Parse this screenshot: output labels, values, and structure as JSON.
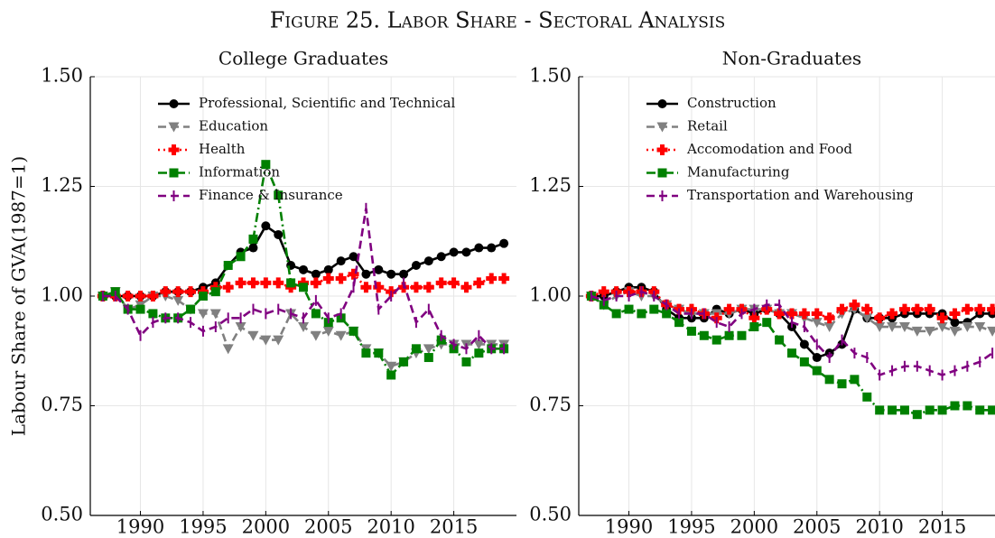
{
  "title": "Figure 25. Labor Share - Sectoral Analysis",
  "chart_data": [
    {
      "type": "line",
      "title": "College Graduates",
      "ylabel": "Labour Share of GVA(1987=1)",
      "x": [
        1987,
        1988,
        1989,
        1990,
        1991,
        1992,
        1993,
        1994,
        1995,
        1996,
        1997,
        1998,
        1999,
        2000,
        2001,
        2002,
        2003,
        2004,
        2005,
        2006,
        2007,
        2008,
        2009,
        2010,
        2011,
        2012,
        2013,
        2014,
        2015,
        2016,
        2017,
        2018,
        2019
      ],
      "xlim": [
        1986,
        2020
      ],
      "xticks": [
        1990,
        1995,
        2000,
        2005,
        2010,
        2015
      ],
      "ylim": [
        0.5,
        1.5
      ],
      "yticks": [
        {
          "value": 0.5,
          "label": "0.50"
        },
        {
          "value": 0.75,
          "label": "0.75"
        },
        {
          "value": 1.0,
          "label": "1.00"
        },
        {
          "value": 1.25,
          "label": "1.25"
        },
        {
          "value": 1.5,
          "label": "1.50"
        }
      ],
      "grid": true,
      "legend": "upper right",
      "series": [
        {
          "name": "Professional, Scientific and Technical",
          "color": "#000000",
          "marker": "circle",
          "linestyle": "solid",
          "values": [
            1.0,
            1.0,
            1.0,
            1.0,
            1.0,
            1.01,
            1.01,
            1.01,
            1.02,
            1.03,
            1.07,
            1.1,
            1.11,
            1.16,
            1.14,
            1.07,
            1.06,
            1.05,
            1.06,
            1.08,
            1.09,
            1.05,
            1.06,
            1.05,
            1.05,
            1.07,
            1.08,
            1.09,
            1.1,
            1.1,
            1.11,
            1.11,
            1.12
          ]
        },
        {
          "name": "Education",
          "color": "#808080",
          "marker": "triangle-down",
          "linestyle": "dashed",
          "values": [
            1.0,
            1.01,
            0.97,
            0.98,
            1.0,
            1.0,
            0.99,
            0.97,
            0.96,
            0.96,
            0.88,
            0.93,
            0.91,
            0.9,
            0.9,
            0.96,
            0.93,
            0.91,
            0.92,
            0.91,
            0.92,
            0.88,
            0.87,
            0.84,
            0.85,
            0.87,
            0.88,
            0.89,
            0.89,
            0.89,
            0.89,
            0.89,
            0.89
          ]
        },
        {
          "name": "Health",
          "color": "#ff0000",
          "marker": "plus",
          "linestyle": "dotted",
          "values": [
            1.0,
            1.0,
            1.0,
            1.0,
            1.0,
            1.01,
            1.01,
            1.01,
            1.01,
            1.02,
            1.02,
            1.03,
            1.03,
            1.03,
            1.03,
            1.02,
            1.03,
            1.03,
            1.04,
            1.04,
            1.05,
            1.02,
            1.02,
            1.01,
            1.02,
            1.02,
            1.02,
            1.03,
            1.03,
            1.02,
            1.03,
            1.04,
            1.04
          ]
        },
        {
          "name": "Information",
          "color": "#008000",
          "marker": "square",
          "linestyle": "dashdot",
          "values": [
            1.0,
            1.01,
            0.97,
            0.97,
            0.96,
            0.95,
            0.95,
            0.97,
            1.0,
            1.01,
            1.07,
            1.09,
            1.13,
            1.3,
            1.23,
            1.03,
            1.02,
            0.96,
            0.94,
            0.95,
            0.92,
            0.87,
            0.87,
            0.82,
            0.85,
            0.88,
            0.86,
            0.9,
            0.88,
            0.85,
            0.87,
            0.88,
            0.88
          ]
        },
        {
          "name": "Finance & Insurance",
          "color": "#800080",
          "marker": "vline",
          "linestyle": "dashed",
          "values": [
            1.0,
            1.0,
            0.97,
            0.91,
            0.94,
            0.95,
            0.95,
            0.94,
            0.92,
            0.93,
            0.95,
            0.95,
            0.97,
            0.96,
            0.97,
            0.96,
            0.95,
            0.99,
            0.95,
            0.96,
            1.02,
            1.2,
            0.97,
            1.0,
            1.03,
            0.94,
            0.97,
            0.91,
            0.89,
            0.88,
            0.91,
            0.88,
            0.88
          ]
        }
      ]
    },
    {
      "type": "line",
      "title": "Non-Graduates",
      "x": [
        1987,
        1988,
        1989,
        1990,
        1991,
        1992,
        1993,
        1994,
        1995,
        1996,
        1997,
        1998,
        1999,
        2000,
        2001,
        2002,
        2003,
        2004,
        2005,
        2006,
        2007,
        2008,
        2009,
        2010,
        2011,
        2012,
        2013,
        2014,
        2015,
        2016,
        2017,
        2018,
        2019
      ],
      "xlim": [
        1986,
        2020
      ],
      "xticks": [
        1990,
        1995,
        2000,
        2005,
        2010,
        2015
      ],
      "ylim": [
        0.5,
        1.5
      ],
      "yticks": [
        {
          "value": 0.5,
          "label": "0.50"
        },
        {
          "value": 0.75,
          "label": "0.75"
        },
        {
          "value": 1.0,
          "label": "1.00"
        },
        {
          "value": 1.25,
          "label": "1.25"
        },
        {
          "value": 1.5,
          "label": "1.50"
        }
      ],
      "grid": true,
      "legend": "upper right",
      "series": [
        {
          "name": "Construction",
          "color": "#000000",
          "marker": "circle",
          "linestyle": "solid",
          "values": [
            1.0,
            1.0,
            1.01,
            1.02,
            1.02,
            1.01,
            0.97,
            0.95,
            0.95,
            0.95,
            0.97,
            0.96,
            0.97,
            0.96,
            0.97,
            0.96,
            0.93,
            0.89,
            0.86,
            0.87,
            0.89,
            0.97,
            0.95,
            0.95,
            0.95,
            0.96,
            0.96,
            0.96,
            0.96,
            0.94,
            0.94,
            0.96,
            0.96
          ]
        },
        {
          "name": "Retail",
          "color": "#808080",
          "marker": "triangle-down",
          "linestyle": "dashed",
          "values": [
            1.0,
            0.98,
            1.0,
            1.01,
            1.0,
            1.0,
            0.98,
            0.97,
            0.96,
            0.96,
            0.96,
            0.96,
            0.97,
            0.97,
            0.97,
            0.96,
            0.96,
            0.95,
            0.94,
            0.93,
            0.96,
            0.97,
            0.95,
            0.93,
            0.93,
            0.93,
            0.92,
            0.92,
            0.93,
            0.92,
            0.93,
            0.93,
            0.92
          ]
        },
        {
          "name": "Accomodation and Food",
          "color": "#ff0000",
          "marker": "plus",
          "linestyle": "dotted",
          "values": [
            1.0,
            1.01,
            1.01,
            1.01,
            1.01,
            1.01,
            0.98,
            0.97,
            0.97,
            0.96,
            0.95,
            0.97,
            0.97,
            0.95,
            0.97,
            0.96,
            0.96,
            0.96,
            0.96,
            0.95,
            0.97,
            0.98,
            0.97,
            0.95,
            0.96,
            0.97,
            0.97,
            0.97,
            0.95,
            0.96,
            0.97,
            0.97,
            0.97
          ]
        },
        {
          "name": "Manufacturing",
          "color": "#008000",
          "marker": "square",
          "linestyle": "dashdot",
          "values": [
            1.0,
            0.98,
            0.96,
            0.97,
            0.96,
            0.97,
            0.96,
            0.94,
            0.92,
            0.91,
            0.9,
            0.91,
            0.91,
            0.93,
            0.94,
            0.9,
            0.87,
            0.85,
            0.83,
            0.81,
            0.8,
            0.81,
            0.77,
            0.74,
            0.74,
            0.74,
            0.73,
            0.74,
            0.74,
            0.75,
            0.75,
            0.74,
            0.74
          ]
        },
        {
          "name": "Transportation and Warehousing",
          "color": "#800080",
          "marker": "vline",
          "linestyle": "dashed",
          "values": [
            1.0,
            0.99,
            1.0,
            1.0,
            1.01,
            1.0,
            0.98,
            0.96,
            0.96,
            0.96,
            0.94,
            0.93,
            0.96,
            0.97,
            0.98,
            0.98,
            0.94,
            0.93,
            0.89,
            0.86,
            0.9,
            0.87,
            0.86,
            0.82,
            0.83,
            0.84,
            0.84,
            0.83,
            0.82,
            0.83,
            0.84,
            0.85,
            0.87
          ]
        }
      ]
    }
  ]
}
